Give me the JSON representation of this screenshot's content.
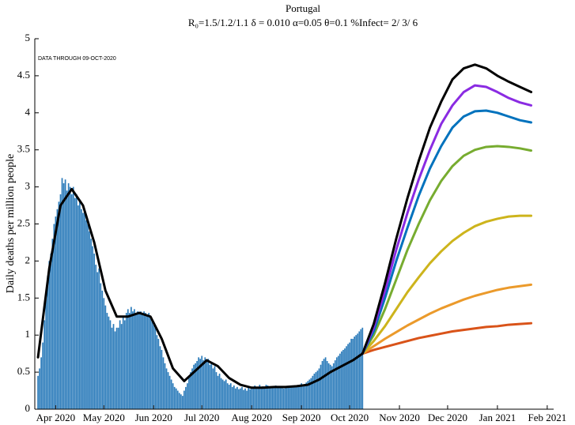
{
  "chart_data": {
    "type": "combo",
    "title": "Portugal",
    "subtitle": "R₀=1.5/1.2/1.1  δ = 0.010  α=0.05  θ=0.1  %Infect= 2/ 3/ 6",
    "annotation": "DATA THROUGH 09-OCT-2020",
    "ylabel": "Daily deaths per million people",
    "xlim": [
      78,
      401
    ],
    "xticks": [
      {
        "value": 91,
        "label": "Apr 2020"
      },
      {
        "value": 121,
        "label": "May 2020"
      },
      {
        "value": 152,
        "label": "Jun 2020"
      },
      {
        "value": 182,
        "label": "Jul 2020"
      },
      {
        "value": 213,
        "label": "Aug 2020"
      },
      {
        "value": 244,
        "label": "Sep 2020"
      },
      {
        "value": 274,
        "label": "Oct 2020"
      },
      {
        "value": 305,
        "label": "Nov 2020"
      },
      {
        "value": 335,
        "label": "Dec 2020"
      },
      {
        "value": 366,
        "label": "Jan 2021"
      },
      {
        "value": 397,
        "label": "Feb 2021"
      }
    ],
    "ylim": [
      0,
      5
    ],
    "yticks": [
      0,
      0.5,
      1,
      1.5,
      2,
      2.5,
      3,
      3.5,
      4,
      4.5,
      5
    ],
    "bars": {
      "color": "#2b7bba",
      "x": [
        80,
        81,
        82,
        83,
        84,
        85,
        86,
        87,
        88,
        89,
        90,
        91,
        92,
        93,
        94,
        95,
        96,
        97,
        98,
        99,
        100,
        101,
        102,
        103,
        104,
        105,
        106,
        107,
        108,
        109,
        110,
        111,
        112,
        113,
        114,
        115,
        116,
        117,
        118,
        119,
        120,
        121,
        122,
        123,
        124,
        125,
        126,
        127,
        128,
        129,
        130,
        131,
        132,
        133,
        134,
        135,
        136,
        137,
        138,
        139,
        140,
        141,
        142,
        143,
        144,
        145,
        146,
        147,
        148,
        149,
        150,
        151,
        152,
        153,
        154,
        155,
        156,
        157,
        158,
        159,
        160,
        161,
        162,
        163,
        164,
        165,
        166,
        167,
        168,
        169,
        170,
        171,
        172,
        173,
        174,
        175,
        176,
        177,
        178,
        179,
        180,
        181,
        182,
        183,
        184,
        185,
        186,
        187,
        188,
        189,
        190,
        191,
        192,
        193,
        194,
        195,
        196,
        197,
        198,
        199,
        200,
        201,
        202,
        203,
        204,
        205,
        206,
        207,
        208,
        209,
        210,
        211,
        212,
        213,
        214,
        215,
        216,
        217,
        218,
        219,
        220,
        221,
        222,
        223,
        224,
        225,
        226,
        227,
        228,
        229,
        230,
        231,
        232,
        233,
        234,
        235,
        236,
        237,
        238,
        239,
        240,
        241,
        242,
        243,
        244,
        245,
        246,
        247,
        248,
        249,
        250,
        251,
        252,
        253,
        254,
        255,
        256,
        257,
        258,
        259,
        260,
        261,
        262,
        263,
        264,
        265,
        266,
        267,
        268,
        269,
        270,
        271,
        272,
        273,
        274,
        275,
        276,
        277,
        278,
        279,
        280,
        281,
        282
      ],
      "values": [
        0.45,
        0.55,
        0.7,
        0.9,
        1.2,
        1.5,
        1.8,
        2.0,
        2.1,
        2.3,
        2.5,
        2.6,
        2.7,
        2.8,
        2.9,
        3.12,
        3.05,
        3.1,
        2.95,
        3.05,
        3.0,
        2.9,
        3.0,
        2.85,
        2.9,
        2.75,
        2.8,
        2.7,
        2.65,
        2.7,
        2.55,
        2.5,
        2.4,
        2.3,
        2.2,
        2.1,
        1.95,
        1.85,
        1.9,
        1.7,
        1.6,
        1.5,
        1.4,
        1.3,
        1.25,
        1.2,
        1.1,
        1.15,
        1.05,
        1.1,
        1.1,
        1.2,
        1.15,
        1.25,
        1.2,
        1.3,
        1.35,
        1.3,
        1.38,
        1.32,
        1.35,
        1.3,
        1.32,
        1.3,
        1.32,
        1.3,
        1.32,
        1.3,
        1.28,
        1.3,
        1.25,
        1.2,
        1.15,
        1.1,
        1.0,
        0.95,
        0.85,
        0.8,
        0.7,
        0.62,
        0.55,
        0.5,
        0.45,
        0.4,
        0.35,
        0.3,
        0.28,
        0.25,
        0.22,
        0.2,
        0.18,
        0.25,
        0.3,
        0.35,
        0.45,
        0.5,
        0.55,
        0.6,
        0.62,
        0.65,
        0.7,
        0.68,
        0.72,
        0.66,
        0.7,
        0.65,
        0.68,
        0.6,
        0.62,
        0.55,
        0.58,
        0.5,
        0.45,
        0.48,
        0.42,
        0.4,
        0.38,
        0.4,
        0.35,
        0.33,
        0.35,
        0.3,
        0.32,
        0.28,
        0.3,
        0.27,
        0.28,
        0.3,
        0.26,
        0.28,
        0.25,
        0.3,
        0.27,
        0.3,
        0.28,
        0.32,
        0.3,
        0.29,
        0.33,
        0.3,
        0.31,
        0.3,
        0.33,
        0.32,
        0.3,
        0.31,
        0.3,
        0.3,
        0.32,
        0.3,
        0.29,
        0.31,
        0.3,
        0.28,
        0.3,
        0.31,
        0.29,
        0.3,
        0.32,
        0.3,
        0.31,
        0.3,
        0.32,
        0.33,
        0.35,
        0.32,
        0.34,
        0.36,
        0.38,
        0.4,
        0.42,
        0.45,
        0.48,
        0.5,
        0.52,
        0.55,
        0.6,
        0.65,
        0.68,
        0.7,
        0.65,
        0.62,
        0.6,
        0.58,
        0.62,
        0.66,
        0.7,
        0.72,
        0.75,
        0.78,
        0.8,
        0.82,
        0.85,
        0.88,
        0.9,
        0.95,
        0.95,
        0.98,
        1.0,
        1.02,
        1.05,
        1.08,
        1.1
      ]
    },
    "lines": {
      "x": [
        80,
        87,
        94,
        101,
        108,
        115,
        122,
        129,
        136,
        143,
        150,
        157,
        164,
        171,
        178,
        185,
        192,
        199,
        206,
        213,
        220,
        227,
        234,
        241,
        248,
        255,
        262,
        269,
        276,
        282,
        289,
        296,
        303,
        310,
        317,
        324,
        331,
        338,
        345,
        352,
        359,
        366,
        373,
        380,
        387
      ],
      "series": [
        {
          "color": "#d95319",
          "values": [
            null,
            null,
            null,
            null,
            null,
            null,
            null,
            null,
            null,
            null,
            null,
            null,
            null,
            null,
            null,
            null,
            null,
            null,
            null,
            null,
            null,
            null,
            null,
            null,
            null,
            null,
            null,
            null,
            null,
            0.75,
            0.8,
            0.84,
            0.88,
            0.92,
            0.96,
            0.99,
            1.02,
            1.05,
            1.07,
            1.09,
            1.11,
            1.12,
            1.14,
            1.15,
            1.16
          ]
        },
        {
          "color": "#eb9a2b",
          "values": [
            null,
            null,
            null,
            null,
            null,
            null,
            null,
            null,
            null,
            null,
            null,
            null,
            null,
            null,
            null,
            null,
            null,
            null,
            null,
            null,
            null,
            null,
            null,
            null,
            null,
            null,
            null,
            null,
            null,
            0.75,
            0.85,
            0.95,
            1.04,
            1.13,
            1.21,
            1.29,
            1.36,
            1.42,
            1.48,
            1.53,
            1.57,
            1.61,
            1.64,
            1.66,
            1.68
          ]
        },
        {
          "color": "#cdb41c",
          "values": [
            null,
            null,
            null,
            null,
            null,
            null,
            null,
            null,
            null,
            null,
            null,
            null,
            null,
            null,
            null,
            null,
            null,
            null,
            null,
            null,
            null,
            null,
            null,
            null,
            null,
            null,
            null,
            null,
            null,
            0.75,
            0.92,
            1.12,
            1.35,
            1.58,
            1.78,
            1.97,
            2.13,
            2.27,
            2.38,
            2.47,
            2.53,
            2.57,
            2.6,
            2.61,
            2.61
          ]
        },
        {
          "color": "#77ac30",
          "values": [
            null,
            null,
            null,
            null,
            null,
            null,
            null,
            null,
            null,
            null,
            null,
            null,
            null,
            null,
            null,
            null,
            null,
            null,
            null,
            null,
            null,
            null,
            null,
            null,
            null,
            null,
            null,
            null,
            null,
            0.75,
            1.0,
            1.35,
            1.75,
            2.15,
            2.5,
            2.82,
            3.08,
            3.28,
            3.42,
            3.5,
            3.54,
            3.55,
            3.54,
            3.52,
            3.49
          ]
        },
        {
          "color": "#0072bd",
          "values": [
            null,
            null,
            null,
            null,
            null,
            null,
            null,
            null,
            null,
            null,
            null,
            null,
            null,
            null,
            null,
            null,
            null,
            null,
            null,
            null,
            null,
            null,
            null,
            null,
            null,
            null,
            null,
            null,
            null,
            0.75,
            1.05,
            1.5,
            2.0,
            2.45,
            2.88,
            3.25,
            3.55,
            3.8,
            3.95,
            4.02,
            4.03,
            4.0,
            3.95,
            3.9,
            3.87
          ]
        },
        {
          "color": "#8a2be2",
          "values": [
            null,
            null,
            null,
            null,
            null,
            null,
            null,
            null,
            null,
            null,
            null,
            null,
            null,
            null,
            null,
            null,
            null,
            null,
            null,
            null,
            null,
            null,
            null,
            null,
            null,
            null,
            null,
            null,
            null,
            0.75,
            1.1,
            1.6,
            2.15,
            2.65,
            3.1,
            3.5,
            3.85,
            4.1,
            4.28,
            4.37,
            4.35,
            4.28,
            4.2,
            4.14,
            4.1
          ]
        },
        {
          "color": "#000000",
          "values": [
            0.7,
            1.9,
            2.75,
            2.97,
            2.75,
            2.25,
            1.6,
            1.25,
            1.25,
            1.3,
            1.25,
            0.95,
            0.55,
            0.38,
            0.52,
            0.66,
            0.58,
            0.42,
            0.33,
            0.29,
            0.29,
            0.3,
            0.3,
            0.31,
            0.33,
            0.4,
            0.5,
            0.58,
            0.66,
            0.75,
            1.15,
            1.7,
            2.3,
            2.85,
            3.35,
            3.8,
            4.15,
            4.45,
            4.6,
            4.65,
            4.6,
            4.5,
            4.42,
            4.35,
            4.28
          ]
        }
      ]
    }
  }
}
